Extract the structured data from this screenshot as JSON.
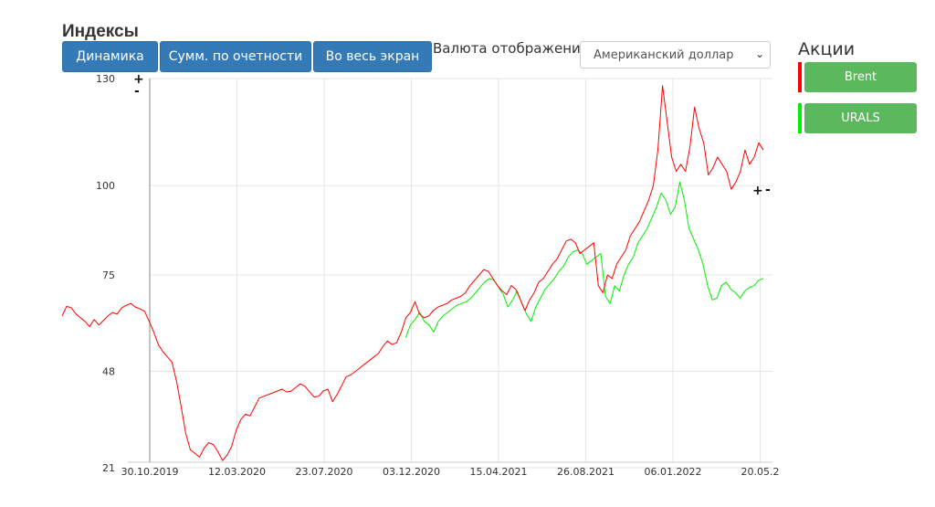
{
  "header": {
    "title": "Индексы",
    "buttons": [
      "Динамика",
      "Сумм. по очетности",
      "Во весь экран"
    ],
    "currency_label": "Валюта отображения",
    "currency_value": "Американский доллар"
  },
  "stocks": {
    "title": "Акции",
    "items": [
      {
        "label": "Brent",
        "color": "#ff0000"
      },
      {
        "label": "URALS",
        "color": "#00ee00"
      }
    ]
  },
  "zoom_controls": {
    "plus": "+",
    "minus": "-"
  },
  "chart_data": {
    "type": "line",
    "yticks": [
      130,
      100,
      75,
      48,
      21
    ],
    "xticks": [
      "30.10.2019",
      "12.03.2020",
      "23.07.2020",
      "03.12.2020",
      "15.04.2021",
      "26.08.2021",
      "06.01.2022",
      "20.05.2"
    ],
    "grid": true,
    "series": [
      {
        "name": "Brent",
        "color": "#ff0000",
        "values": [
          63.5,
          66.2,
          65.8,
          64.1,
          63.0,
          62.0,
          60.5,
          62.5,
          61.0,
          62.2,
          63.5,
          64.5,
          64.0,
          65.8,
          66.5,
          67.0,
          66.0,
          65.5,
          64.8,
          62.0,
          59.0,
          55.5,
          53.5,
          52.0,
          50.5,
          45.0,
          38.0,
          30.5,
          26.0,
          25.0,
          24.0,
          26.5,
          28.0,
          27.5,
          25.5,
          23.0,
          24.5,
          27.0,
          31.5,
          34.5,
          36.0,
          35.5,
          38.0,
          40.5,
          41.0,
          41.5,
          42.0,
          42.5,
          43.0,
          42.2,
          42.5,
          43.5,
          44.5,
          43.8,
          42.2,
          40.8,
          41.0,
          42.5,
          43.0,
          39.5,
          41.5,
          44.0,
          46.5,
          47.0,
          48.0,
          49.0,
          50.0,
          51.0,
          52.0,
          53.0,
          55.0,
          56.5,
          55.5,
          56.0,
          59.0,
          63.0,
          64.5,
          67.5,
          64.0,
          63.0,
          63.5,
          65.0,
          66.0,
          66.5,
          67.0,
          68.0,
          68.5,
          69.0,
          70.0,
          72.0,
          73.5,
          75.0,
          76.5,
          76.0,
          74.0,
          72.0,
          70.5,
          69.5,
          72.0,
          71.0,
          68.0,
          65.0,
          68.0,
          70.0,
          73.0,
          74.0,
          76.0,
          78.0,
          79.5,
          82.0,
          84.5,
          85.0,
          84.0,
          81.0,
          82.0,
          83.0,
          84.0,
          72.0,
          70.0,
          75.0,
          74.0,
          78.0,
          80.0,
          82.0,
          86.0,
          88.0,
          90.0,
          93.0,
          96.0,
          100.0,
          110.0,
          128.0,
          118.0,
          108.0,
          104.0,
          106.0,
          104.0,
          111.0,
          122.0,
          116.0,
          112.0,
          103.0,
          105.0,
          108.0,
          106.0,
          104.0,
          99.0,
          101.0,
          104.0,
          110.0,
          106.0,
          108.0,
          112.0,
          110.0
        ]
      },
      {
        "name": "URALS",
        "color": "#00ee00",
        "values": [
          null,
          null,
          null,
          null,
          null,
          null,
          null,
          null,
          null,
          null,
          null,
          null,
          null,
          null,
          null,
          null,
          null,
          null,
          null,
          null,
          null,
          null,
          null,
          null,
          null,
          null,
          null,
          null,
          null,
          null,
          null,
          null,
          null,
          null,
          null,
          null,
          null,
          null,
          null,
          null,
          null,
          null,
          null,
          null,
          null,
          null,
          null,
          null,
          null,
          null,
          null,
          null,
          null,
          null,
          null,
          null,
          null,
          null,
          null,
          null,
          null,
          null,
          null,
          null,
          null,
          null,
          null,
          null,
          null,
          null,
          null,
          null,
          null,
          null,
          57.5,
          61.0,
          62.5,
          64.5,
          62.0,
          61.0,
          59.0,
          62.0,
          63.5,
          64.5,
          65.5,
          66.5,
          67.0,
          67.5,
          68.5,
          70.0,
          71.5,
          73.0,
          74.0,
          73.5,
          71.5,
          69.5,
          66.0,
          68.0,
          70.5,
          67.0,
          64.0,
          62.0,
          66.0,
          68.5,
          71.0,
          72.5,
          74.0,
          76.0,
          77.5,
          80.0,
          81.5,
          82.0,
          81.0,
          78.0,
          79.0,
          80.0,
          81.0,
          69.0,
          67.0,
          72.0,
          70.5,
          75.0,
          78.0,
          80.0,
          84.0,
          86.0,
          88.0,
          91.0,
          94.0,
          98.0,
          96.0,
          92.0,
          94.0,
          101.0,
          96.0,
          88.0,
          85.0,
          82.0,
          78.0,
          72.0,
          68.0,
          68.5,
          72.0,
          73.0,
          71.0,
          70.0,
          68.5,
          70.5,
          71.5,
          72.0,
          73.5,
          74.0
        ]
      }
    ]
  }
}
